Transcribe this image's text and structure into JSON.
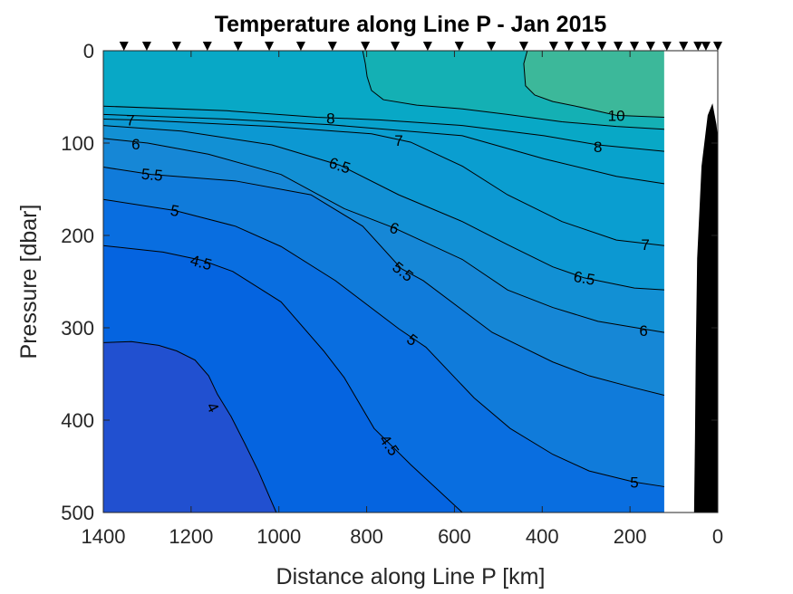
{
  "chart_data": {
    "type": "contour",
    "title": "Temperature along Line P - Jan 2015",
    "xlabel": "Distance along Line P [km]",
    "ylabel": "Pressure [dbar]",
    "xlim": [
      0,
      1400
    ],
    "x_reversed": true,
    "ylim": [
      0,
      500
    ],
    "y_reversed": true,
    "xticks": [
      0,
      200,
      400,
      600,
      800,
      1000,
      1200,
      1400
    ],
    "yticks": [
      0,
      100,
      200,
      300,
      400,
      500
    ],
    "grid": false,
    "data_max_distance_km": 122,
    "band_colors": {
      "below_4": "#2150d0",
      "4_4.5": "#0564e0",
      "4.5_5": "#096ee0",
      "5_5.5": "#107bda",
      "5.5_6": "#1687d6",
      "6_6.5": "#1290d4",
      "6.5_7": "#0c98d2",
      "7_7.5": "#0a9ed0",
      "7.5_8": "#08a2cc",
      "8_9": "#08a8c6",
      "9_10": "#14b0b4",
      "above_10": "#3cb89a"
    },
    "contours": [
      {
        "level": 10,
        "below_color": "#14b0b4",
        "points": [
          [
            434,
            0
          ],
          [
            442,
            14
          ],
          [
            438,
            38
          ],
          [
            417,
            48
          ],
          [
            376,
            55
          ],
          [
            314,
            61
          ],
          [
            231,
            70
          ],
          [
            122,
            72
          ]
        ]
      },
      {
        "level": 9,
        "below_color": "#08a8c6",
        "points": [
          [
            809,
            0
          ],
          [
            803,
            14
          ],
          [
            799,
            28
          ],
          [
            789,
            43
          ],
          [
            762,
            53
          ],
          [
            686,
            59
          ],
          [
            582,
            63
          ],
          [
            479,
            69
          ],
          [
            355,
            77
          ],
          [
            231,
            82
          ],
          [
            122,
            85
          ]
        ]
      },
      {
        "level": 8,
        "below_color": "#08a2cc",
        "points": [
          [
            1400,
            60
          ],
          [
            1119,
            65
          ],
          [
            913,
            72
          ],
          [
            768,
            75
          ],
          [
            582,
            81
          ],
          [
            396,
            92
          ],
          [
            273,
            102
          ],
          [
            122,
            109
          ]
        ]
      },
      {
        "level": 7.5,
        "below_color": "#0a9ed0",
        "points": [
          [
            1400,
            69
          ],
          [
            1119,
            74
          ],
          [
            886,
            80
          ],
          [
            582,
            92
          ],
          [
            396,
            117
          ],
          [
            231,
            136
          ],
          [
            122,
            144
          ]
        ]
      },
      {
        "level": 7,
        "below_color": "#0c98d2",
        "points": [
          [
            1400,
            74
          ],
          [
            1320,
            75
          ],
          [
            1016,
            82
          ],
          [
            789,
            90
          ],
          [
            700,
            99
          ],
          [
            582,
            125
          ],
          [
            479,
            156
          ],
          [
            355,
            185
          ],
          [
            231,
            205
          ],
          [
            122,
            211
          ]
        ]
      },
      {
        "level": 6.5,
        "below_color": "#1290d4",
        "points": [
          [
            1400,
            81
          ],
          [
            1222,
            87
          ],
          [
            1016,
            102
          ],
          [
            861,
            124
          ],
          [
            727,
            156
          ],
          [
            582,
            185
          ],
          [
            479,
            210
          ],
          [
            376,
            234
          ],
          [
            304,
            246
          ],
          [
            190,
            257
          ],
          [
            122,
            259
          ]
        ]
      },
      {
        "level": 6,
        "below_color": "#1687d6",
        "points": [
          [
            1400,
            95
          ],
          [
            1299,
            100
          ],
          [
            1161,
            112
          ],
          [
            995,
            134
          ],
          [
            851,
            171
          ],
          [
            737,
            192
          ],
          [
            582,
            226
          ],
          [
            479,
            259
          ],
          [
            376,
            278
          ],
          [
            273,
            293
          ],
          [
            122,
            305
          ]
        ]
      },
      {
        "level": 5.5,
        "below_color": "#107bda",
        "points": [
          [
            1400,
            126
          ],
          [
            1291,
            134
          ],
          [
            1099,
            141
          ],
          [
            927,
            156
          ],
          [
            809,
            190
          ],
          [
            721,
            236
          ],
          [
            671,
            249
          ],
          [
            514,
            305
          ],
          [
            376,
            337
          ],
          [
            293,
            352
          ],
          [
            190,
            365
          ],
          [
            122,
            373
          ]
        ]
      },
      {
        "level": 5,
        "below_color": "#096ee0",
        "points": [
          [
            1400,
            161
          ],
          [
            1237,
            173
          ],
          [
            1099,
            190
          ],
          [
            995,
            212
          ],
          [
            871,
            249
          ],
          [
            727,
            301
          ],
          [
            665,
            321
          ],
          [
            555,
            376
          ],
          [
            473,
            409
          ],
          [
            376,
            437
          ],
          [
            293,
            455
          ],
          [
            190,
            467
          ],
          [
            122,
            472
          ]
        ]
      },
      {
        "level": 4.5,
        "below_color": "#0564e0",
        "points": [
          [
            1400,
            211
          ],
          [
            1264,
            218
          ],
          [
            1175,
            227
          ],
          [
            1105,
            239
          ],
          [
            995,
            272
          ],
          [
            898,
            325
          ],
          [
            851,
            354
          ],
          [
            783,
            409
          ],
          [
            700,
            448
          ],
          [
            582,
            500
          ]
        ]
      },
      {
        "level": 4,
        "below_color": "#2150d0",
        "points": [
          [
            1400,
            316
          ],
          [
            1336,
            315
          ],
          [
            1274,
            319
          ],
          [
            1233,
            325
          ],
          [
            1191,
            335
          ],
          [
            1160,
            352
          ],
          [
            1140,
            372
          ],
          [
            1109,
            396
          ],
          [
            1078,
            425
          ],
          [
            1047,
            455
          ],
          [
            1006,
            500
          ]
        ]
      }
    ],
    "contour_labels": [
      {
        "text": "10",
        "x": 231,
        "y": 70,
        "angle": 0
      },
      {
        "text": "8",
        "x": 273,
        "y": 104,
        "angle": 0
      },
      {
        "text": "8",
        "x": 882,
        "y": 73,
        "angle": 0
      },
      {
        "text": "7",
        "x": 1338,
        "y": 75,
        "angle": 0
      },
      {
        "text": "7",
        "x": 727,
        "y": 97,
        "angle": 0
      },
      {
        "text": "7",
        "x": 165,
        "y": 210,
        "angle": 0
      },
      {
        "text": "6.5",
        "x": 861,
        "y": 124,
        "angle": 18
      },
      {
        "text": "6.5",
        "x": 304,
        "y": 246,
        "angle": 10
      },
      {
        "text": "6",
        "x": 1326,
        "y": 101,
        "angle": 0
      },
      {
        "text": "6",
        "x": 737,
        "y": 192,
        "angle": 20
      },
      {
        "text": "6",
        "x": 169,
        "y": 303,
        "angle": 0
      },
      {
        "text": "5.5",
        "x": 1289,
        "y": 134,
        "angle": 5
      },
      {
        "text": "5.5",
        "x": 717,
        "y": 239,
        "angle": 38
      },
      {
        "text": "5",
        "x": 1237,
        "y": 173,
        "angle": 10
      },
      {
        "text": "5",
        "x": 696,
        "y": 313,
        "angle": 38
      },
      {
        "text": "5",
        "x": 190,
        "y": 467,
        "angle": 0
      },
      {
        "text": "4.5",
        "x": 1177,
        "y": 229,
        "angle": 15
      },
      {
        "text": "4.5",
        "x": 748,
        "y": 427,
        "angle": 55
      },
      {
        "text": "4",
        "x": 1150,
        "y": 386,
        "angle": 62
      }
    ],
    "stations_km": [
      1353,
      1301,
      1233,
      1163,
      1093,
      1022,
      950,
      878,
      803,
      735,
      661,
      589,
      516,
      442,
      374,
      339,
      301,
      264,
      227,
      190,
      153,
      116,
      78,
      45,
      27,
      0
    ],
    "bathymetry": {
      "color": "#000000",
      "points": [
        [
          54,
          500
        ],
        [
          52,
          422
        ],
        [
          50,
          324
        ],
        [
          47,
          225
        ],
        [
          37,
          125
        ],
        [
          23,
          70
        ],
        [
          12,
          57
        ],
        [
          3,
          80
        ],
        [
          0,
          93
        ],
        [
          0,
          500
        ]
      ]
    }
  }
}
